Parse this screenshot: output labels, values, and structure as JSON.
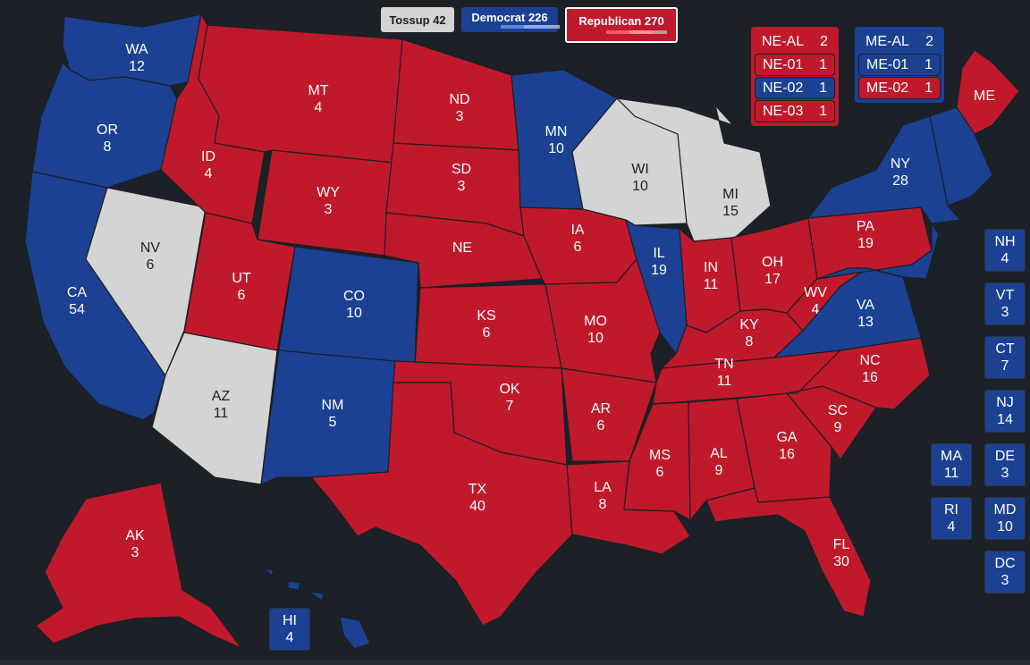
{
  "colors": {
    "R": "#c0192b",
    "D": "#1c4193",
    "T": "#d4d4d4",
    "bg": "#1c2128"
  },
  "tally": {
    "tossup": {
      "label": "Tossup 42",
      "color": "#d4d4d4"
    },
    "dem": {
      "label": "Democrat 226",
      "color": "#1c4193"
    },
    "rep": {
      "label": "Republican 270",
      "color": "#c0192b"
    }
  },
  "states": {
    "WA": {
      "abbr": "WA",
      "ev": "12",
      "party": "D"
    },
    "OR": {
      "abbr": "OR",
      "ev": "8",
      "party": "D"
    },
    "CA": {
      "abbr": "CA",
      "ev": "54",
      "party": "D"
    },
    "NV": {
      "abbr": "NV",
      "ev": "6",
      "party": "T"
    },
    "ID": {
      "abbr": "ID",
      "ev": "4",
      "party": "R"
    },
    "MT": {
      "abbr": "MT",
      "ev": "4",
      "party": "R"
    },
    "WY": {
      "abbr": "WY",
      "ev": "3",
      "party": "R"
    },
    "UT": {
      "abbr": "UT",
      "ev": "6",
      "party": "R"
    },
    "AZ": {
      "abbr": "AZ",
      "ev": "11",
      "party": "T"
    },
    "CO": {
      "abbr": "CO",
      "ev": "10",
      "party": "D"
    },
    "NM": {
      "abbr": "NM",
      "ev": "5",
      "party": "D"
    },
    "ND": {
      "abbr": "ND",
      "ev": "3",
      "party": "R"
    },
    "SD": {
      "abbr": "SD",
      "ev": "3",
      "party": "R"
    },
    "NE": {
      "abbr": "NE",
      "ev": "",
      "party": "R"
    },
    "KS": {
      "abbr": "KS",
      "ev": "6",
      "party": "R"
    },
    "OK": {
      "abbr": "OK",
      "ev": "7",
      "party": "R"
    },
    "TX": {
      "abbr": "TX",
      "ev": "40",
      "party": "R"
    },
    "MN": {
      "abbr": "MN",
      "ev": "10",
      "party": "D"
    },
    "IA": {
      "abbr": "IA",
      "ev": "6",
      "party": "R"
    },
    "MO": {
      "abbr": "MO",
      "ev": "10",
      "party": "R"
    },
    "AR": {
      "abbr": "AR",
      "ev": "6",
      "party": "R"
    },
    "LA": {
      "abbr": "LA",
      "ev": "8",
      "party": "R"
    },
    "WI": {
      "abbr": "WI",
      "ev": "10",
      "party": "T"
    },
    "IL": {
      "abbr": "IL",
      "ev": "19",
      "party": "D"
    },
    "MI": {
      "abbr": "MI",
      "ev": "15",
      "party": "T"
    },
    "IN": {
      "abbr": "IN",
      "ev": "11",
      "party": "R"
    },
    "OH": {
      "abbr": "OH",
      "ev": "17",
      "party": "R"
    },
    "KY": {
      "abbr": "KY",
      "ev": "8",
      "party": "R"
    },
    "TN": {
      "abbr": "TN",
      "ev": "11",
      "party": "R"
    },
    "MS": {
      "abbr": "MS",
      "ev": "6",
      "party": "R"
    },
    "AL": {
      "abbr": "AL",
      "ev": "9",
      "party": "R"
    },
    "GA": {
      "abbr": "GA",
      "ev": "16",
      "party": "R"
    },
    "FL": {
      "abbr": "FL",
      "ev": "30",
      "party": "R"
    },
    "SC": {
      "abbr": "SC",
      "ev": "9",
      "party": "R"
    },
    "NC": {
      "abbr": "NC",
      "ev": "16",
      "party": "R"
    },
    "VA": {
      "abbr": "VA",
      "ev": "13",
      "party": "D"
    },
    "WV": {
      "abbr": "WV",
      "ev": "4",
      "party": "R"
    },
    "PA": {
      "abbr": "PA",
      "ev": "19",
      "party": "R"
    },
    "NY": {
      "abbr": "NY",
      "ev": "28",
      "party": "D"
    },
    "ME": {
      "abbr": "ME",
      "ev": "",
      "party": "R"
    },
    "AK": {
      "abbr": "AK",
      "ev": "3",
      "party": "R"
    },
    "HI": {
      "abbr": "HI",
      "ev": "4",
      "party": "D"
    }
  },
  "tiles": [
    {
      "abbr": "NH",
      "ev": "4",
      "party": "D"
    },
    {
      "abbr": "VT",
      "ev": "3",
      "party": "D"
    },
    {
      "abbr": "CT",
      "ev": "7",
      "party": "D"
    },
    {
      "abbr": "NJ",
      "ev": "14",
      "party": "D"
    },
    {
      "abbr": "DE",
      "ev": "3",
      "party": "D"
    },
    {
      "abbr": "MD",
      "ev": "10",
      "party": "D"
    },
    {
      "abbr": "DC",
      "ev": "3",
      "party": "D"
    },
    {
      "abbr": "MA",
      "ev": "11",
      "party": "D"
    },
    {
      "abbr": "RI",
      "ev": "4",
      "party": "D"
    }
  ],
  "districts": {
    "nebraska": [
      {
        "label": "NE-AL",
        "ev": "2",
        "party": "R"
      },
      {
        "label": "NE-01",
        "ev": "1",
        "party": "R"
      },
      {
        "label": "NE-02",
        "ev": "1",
        "party": "D"
      },
      {
        "label": "NE-03",
        "ev": "1",
        "party": "R"
      }
    ],
    "maine": [
      {
        "label": "ME-AL",
        "ev": "2",
        "party": "D"
      },
      {
        "label": "ME-01",
        "ev": "1",
        "party": "D"
      },
      {
        "label": "ME-02",
        "ev": "1",
        "party": "R"
      }
    ]
  }
}
